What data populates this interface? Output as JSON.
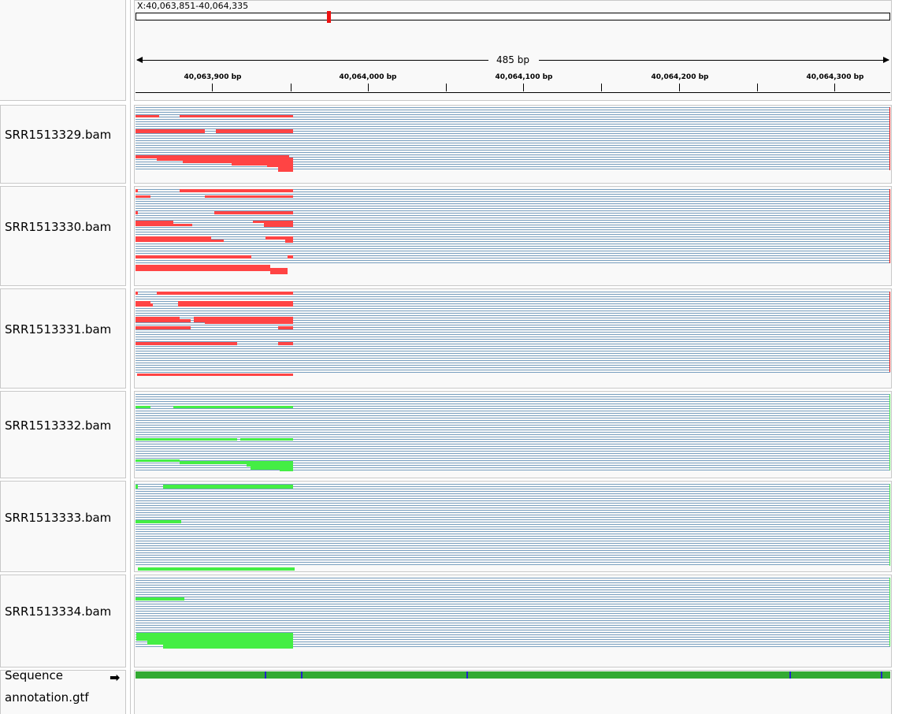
{
  "ruler": {
    "locus": "X:40,063,851-40,064,335",
    "width_label": "485 bp",
    "ticks": [
      "40,063,900 bp",
      "40,064,000 bp",
      "40,064,100 bp",
      "40,064,200 bp",
      "40,064,300 bp"
    ]
  },
  "colors": {
    "read_line": "#7aa0c0",
    "panel_bg": "#f9f9f9",
    "red_coverage": "#ff4444",
    "green_coverage": "#44ee44",
    "chrom_marker": "#ee1111"
  },
  "tracks": [
    {
      "name": "SRR1513329.bam",
      "color": "red"
    },
    {
      "name": "SRR1513330.bam",
      "color": "red"
    },
    {
      "name": "SRR1513331.bam",
      "color": "red"
    },
    {
      "name": "SRR1513332.bam",
      "color": "green"
    },
    {
      "name": "SRR1513333.bam",
      "color": "green"
    },
    {
      "name": "SRR1513334.bam",
      "color": "green"
    }
  ],
  "sequence_track": {
    "name": "Sequence",
    "arrow_icon": "right-arrow-icon"
  },
  "annotation_track": {
    "name": "annotation.gtf"
  }
}
